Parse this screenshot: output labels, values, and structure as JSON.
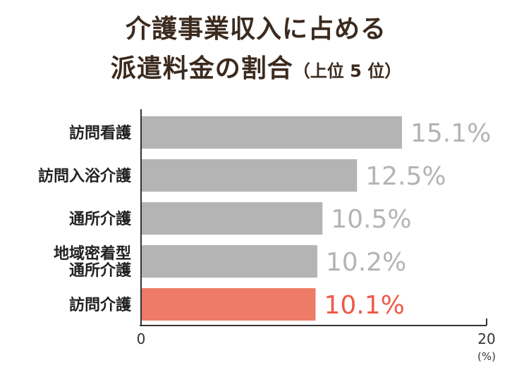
{
  "chart_data": {
    "type": "bar",
    "orientation": "horizontal",
    "title_line1": "介護事業収入に占める",
    "title_line2": "派遣料金の割合",
    "title_suffix": "（上位 5 位）",
    "categories": [
      [
        "訪問看護"
      ],
      [
        "訪問入浴介護"
      ],
      [
        "通所介護"
      ],
      [
        "地域密着型",
        "通所介護"
      ],
      [
        "訪問介護"
      ]
    ],
    "values": [
      15.1,
      12.5,
      10.5,
      10.2,
      10.1
    ],
    "value_labels": [
      "15.1%",
      "12.5%",
      "10.5%",
      "10.2%",
      "10.1%"
    ],
    "highlight_index": 4,
    "xlim": [
      0,
      20
    ],
    "x_ticks": [
      "0",
      "20"
    ],
    "x_unit": "(%)",
    "colors": {
      "bar": "#b4b4b4",
      "bar_highlight": "#ee7a68",
      "label": "#b4b4b4",
      "label_highlight": "#ee5a4a",
      "title": "#3b2a1e",
      "category": "#222222",
      "axis": "#333333"
    }
  }
}
